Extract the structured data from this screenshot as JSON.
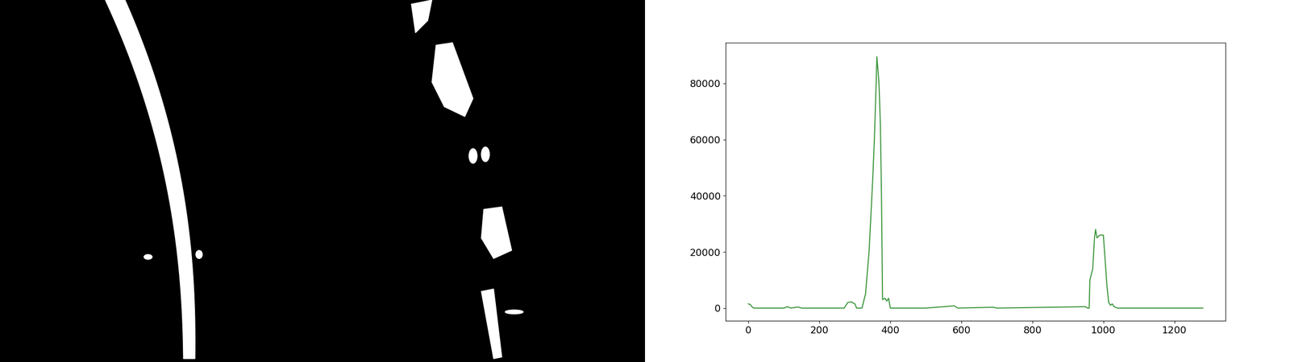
{
  "chart_data": {
    "type": "line",
    "color": "#3c963c",
    "x": [
      0,
      5,
      10,
      15,
      100,
      110,
      120,
      140,
      150,
      270,
      280,
      290,
      300,
      305,
      320,
      330,
      340,
      350,
      355,
      360,
      362,
      365,
      368,
      372,
      375,
      378,
      385,
      390,
      395,
      400,
      500,
      580,
      590,
      690,
      700,
      950,
      955,
      960,
      962,
      970,
      975,
      978,
      982,
      990,
      1000,
      1005,
      1010,
      1015,
      1020,
      1025,
      1030,
      1040,
      1280
    ],
    "values": [
      1500,
      1300,
      500,
      0,
      0,
      500,
      0,
      400,
      0,
      0,
      2000,
      2200,
      1500,
      0,
      0,
      5000,
      20000,
      45000,
      60000,
      80000,
      89500,
      85000,
      80000,
      65000,
      40000,
      3000,
      3500,
      2500,
      3500,
      0,
      0,
      800,
      0,
      300,
      0,
      500,
      0,
      0,
      10000,
      14000,
      25000,
      28000,
      25000,
      26000,
      26000,
      17000,
      8000,
      2000,
      1000,
      1500,
      500,
      0,
      0
    ],
    "xlim": [
      -64,
      1344
    ],
    "xticks": [
      0,
      200,
      400,
      600,
      800,
      1000,
      1200
    ],
    "ylim": [
      -4500,
      94500
    ],
    "yticks": [
      0,
      20000,
      40000,
      60000,
      80000
    ],
    "grid": false
  }
}
